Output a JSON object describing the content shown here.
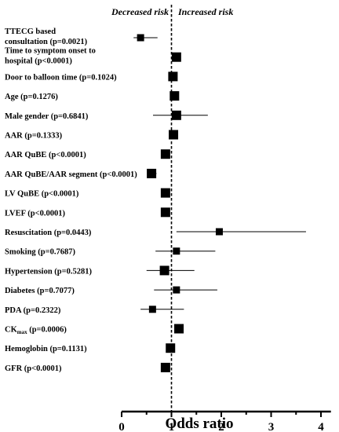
{
  "chart_data": {
    "type": "forest",
    "xlabel": "Odds ratio",
    "xlim": [
      0,
      4.2
    ],
    "x_ticks": [
      "0",
      "1",
      "2",
      "3",
      "4"
    ],
    "reference_line": 1,
    "annotations": {
      "left": "Decreased risk",
      "right": "Increased risk"
    },
    "rows": [
      {
        "label_lines": [
          "TTECG based",
          "consultation  (p=0.0021)"
        ],
        "or": 0.38,
        "lo": 0.24,
        "hi": 0.72,
        "marker": "small"
      },
      {
        "label_lines": [
          "Time to symptom onset to",
          "hospital  (p<0.0001)"
        ],
        "or": 1.1,
        "lo": 1.05,
        "hi": 1.15,
        "marker": "large"
      },
      {
        "label_lines": [
          "Door to balloon time (p=0.1024)"
        ],
        "or": 1.03,
        "lo": 0.98,
        "hi": 1.08,
        "marker": "large"
      },
      {
        "label_lines": [
          "Age (p=0.1276)"
        ],
        "or": 1.06,
        "lo": 1.01,
        "hi": 1.11,
        "marker": "large"
      },
      {
        "label_lines": [
          "Male gender (p=0.6841)"
        ],
        "or": 1.1,
        "lo": 0.63,
        "hi": 1.73,
        "marker": "large"
      },
      {
        "label_lines": [
          "AAR (p=0.1333)"
        ],
        "or": 1.04,
        "lo": 0.99,
        "hi": 1.09,
        "marker": "large"
      },
      {
        "label_lines": [
          "AAR QuBE (p<0.0001)"
        ],
        "or": 0.88,
        "lo": 0.84,
        "hi": 0.92,
        "marker": "large"
      },
      {
        "label_lines": [
          "AAR QuBE/AAR segment  (p<0.0001)"
        ],
        "or": 0.6,
        "lo": 0.52,
        "hi": 0.7,
        "marker": "large"
      },
      {
        "label_lines": [
          "LV QuBE (p<0.0001)"
        ],
        "or": 0.88,
        "lo": 0.84,
        "hi": 0.92,
        "marker": "large"
      },
      {
        "label_lines": [
          "LVEF (p<0.0001)"
        ],
        "or": 0.88,
        "lo": 0.84,
        "hi": 0.92,
        "marker": "large"
      },
      {
        "label_lines": [
          "Resuscitation (p=0.0443)"
        ],
        "or": 1.96,
        "lo": 1.1,
        "hi": 3.7,
        "marker": "small"
      },
      {
        "label_lines": [
          "Smoking (p=0.7687)"
        ],
        "or": 1.1,
        "lo": 0.68,
        "hi": 1.88,
        "marker": "small"
      },
      {
        "label_lines": [
          "Hypertension (p=0.5281)"
        ],
        "or": 0.86,
        "lo": 0.5,
        "hi": 1.46,
        "marker": "large"
      },
      {
        "label_lines": [
          "Diabetes (p=0.7077)"
        ],
        "or": 1.1,
        "lo": 0.65,
        "hi": 1.92,
        "marker": "small"
      },
      {
        "label_lines": [
          "PDA (p=0.2322)"
        ],
        "or": 0.62,
        "lo": 0.38,
        "hi": 1.25,
        "marker": "small"
      },
      {
        "label_main": "CK",
        "label_sub": "max",
        "label_rest": " (p=0.0006)",
        "or": 1.15,
        "lo": 1.08,
        "hi": 1.22,
        "marker": "large"
      },
      {
        "label_lines": [
          "Hemoglobin (p=0.1131)"
        ],
        "or": 0.98,
        "lo": 0.92,
        "hi": 1.04,
        "marker": "large"
      },
      {
        "label_lines": [
          "GFR (p<0.0001)"
        ],
        "or": 0.88,
        "lo": 0.84,
        "hi": 0.92,
        "marker": "large"
      }
    ]
  }
}
